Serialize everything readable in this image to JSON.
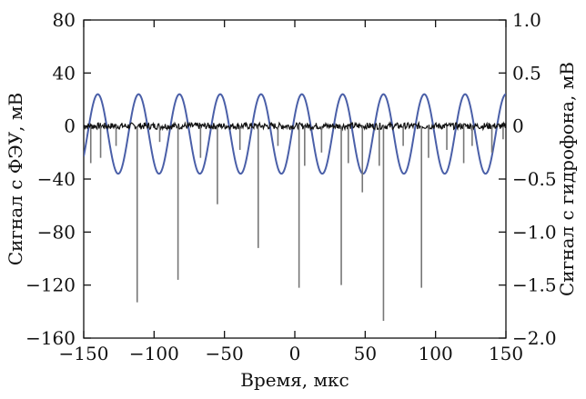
{
  "chart_data": {
    "type": "line",
    "xlabel": "Время, мкс",
    "ylabel": "Сигнал с ФЭУ, мВ",
    "ylabel_right": "Сигнал с гидрофона, мВ",
    "xlim": [
      -150,
      150
    ],
    "ylim": [
      -160,
      80
    ],
    "ylim_right": [
      -2.0,
      1.0
    ],
    "xticks": [
      "−150",
      "−100",
      "−50",
      "0",
      "50",
      "100",
      "150"
    ],
    "xtick_values": [
      -150,
      -100,
      -50,
      0,
      50,
      100,
      150
    ],
    "yticks": [
      "80",
      "40",
      "0",
      "−40",
      "−80",
      "−120",
      "−160"
    ],
    "ytick_values": [
      80,
      40,
      0,
      -40,
      -80,
      -120,
      -160
    ],
    "yticks_right": [
      "1.0",
      "0.5",
      "0",
      "−0.5",
      "−1.0",
      "−1.5",
      "−2.0"
    ],
    "ytick_right_values": [
      1.0,
      0.5,
      0,
      -0.5,
      -1.0,
      -1.5,
      -2.0
    ],
    "grid": false,
    "series": [
      {
        "axis": "right",
        "color": "#4a5fa8",
        "kind": "sine",
        "period": 29,
        "max": 0.3,
        "min": -0.45,
        "peaks_at": [
          -140,
          -111,
          -82,
          -53,
          -24,
          5,
          34,
          63,
          92,
          121
        ]
      },
      {
        "axis": "left",
        "color": "#111111",
        "kind": "noise-baseline",
        "band": [
          -2.5,
          2.5
        ]
      },
      {
        "axis": "left",
        "color": "#777777",
        "kind": "pulses",
        "x": [
          -145,
          -138,
          -127,
          -112,
          -96,
          -83,
          -67,
          -55,
          -39,
          -26,
          -12,
          3,
          7,
          19,
          33,
          38,
          48,
          60,
          63,
          77,
          90,
          95,
          108,
          120,
          126,
          140,
          148
        ],
        "y": [
          -28,
          -24,
          -15,
          -133,
          -12,
          -116,
          -24,
          -59,
          -18,
          -92,
          -15,
          -122,
          -30,
          -20,
          -120,
          -28,
          -50,
          -30,
          -147,
          -15,
          -122,
          -24,
          -18,
          -28,
          -15,
          -20,
          -10
        ]
      }
    ]
  }
}
